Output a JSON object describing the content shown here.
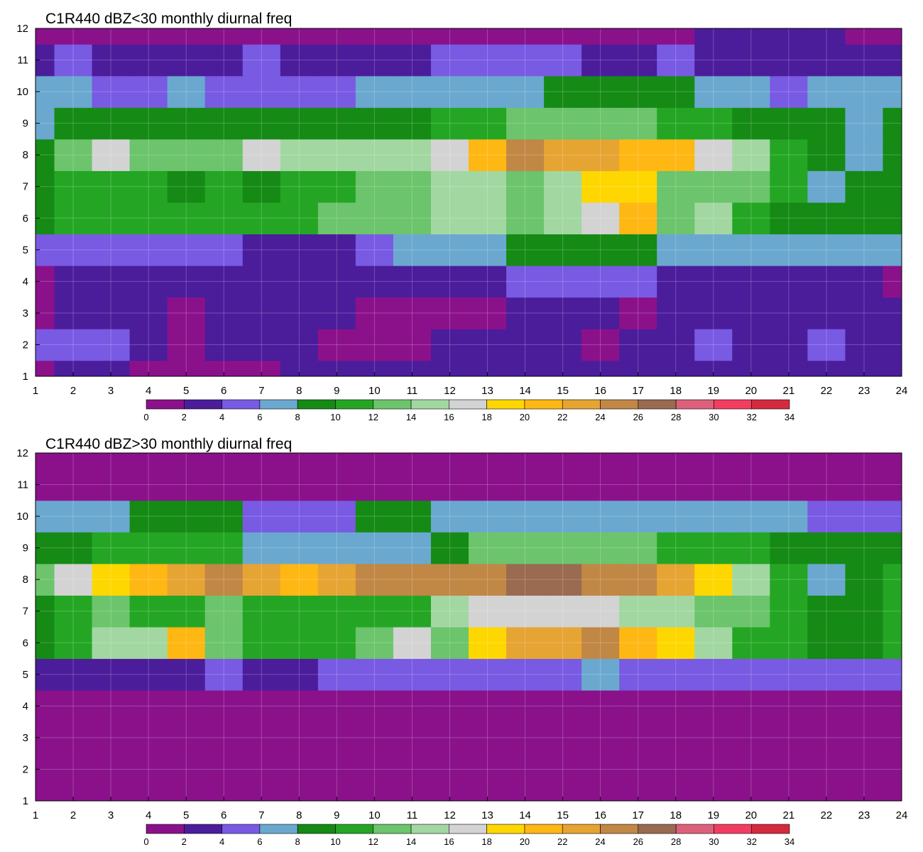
{
  "chart_data": [
    {
      "type": "heatmap",
      "title": "C1R440 dBZ<30 monthly diurnal freq",
      "xlabel": "",
      "ylabel": "",
      "xlim": [
        1,
        24
      ],
      "ylim": [
        1,
        12
      ],
      "x_ticks": [
        "1",
        "2",
        "3",
        "4",
        "5",
        "6",
        "7",
        "8",
        "9",
        "10",
        "11",
        "12",
        "13",
        "14",
        "15",
        "16",
        "17",
        "18",
        "19",
        "20",
        "21",
        "22",
        "23",
        "24"
      ],
      "y_ticks": [
        "1",
        "2",
        "3",
        "4",
        "5",
        "6",
        "7",
        "8",
        "9",
        "10",
        "11",
        "12"
      ],
      "grid": true,
      "colorbar": {
        "levels": [
          "0",
          "2",
          "4",
          "6",
          "8",
          "10",
          "12",
          "14",
          "16",
          "18",
          "20",
          "22",
          "24",
          "26",
          "28",
          "30",
          "32",
          "34"
        ],
        "colors": [
          "#8b118b",
          "#4b1d9b",
          "#785ae3",
          "#6ba8cf",
          "#158a15",
          "#24a624",
          "#6cc46c",
          "#a2d7a2",
          "#d3d3d3",
          "#ffd700",
          "#ffb713",
          "#e6a433",
          "#c18745",
          "#9a6a51",
          "#dd607a",
          "#f23d61",
          "#d52a3d"
        ],
        "position": "bottom"
      },
      "series": [
        {
          "y": 1,
          "values": [
            1,
            2,
            2,
            1,
            1,
            0,
            1,
            2,
            3,
            3,
            3,
            2,
            2,
            2,
            3,
            3,
            3,
            3,
            3,
            3,
            2,
            3,
            3,
            3
          ]
        },
        {
          "y": 2,
          "values": [
            5,
            5,
            4,
            3,
            1,
            2,
            2,
            3,
            1,
            1,
            1,
            2,
            3,
            2,
            3,
            1,
            2,
            3,
            5,
            3,
            2,
            5,
            3,
            3
          ]
        },
        {
          "y": 3,
          "values": [
            1,
            2,
            3,
            3,
            1,
            3,
            3,
            3,
            2,
            1,
            1,
            1,
            1,
            2,
            3,
            3,
            1,
            3,
            3,
            3,
            3,
            2,
            3,
            3
          ]
        },
        {
          "y": 4,
          "values": [
            1,
            2,
            3,
            3,
            3,
            3,
            3,
            3,
            3,
            3,
            3,
            3,
            3,
            4,
            5,
            4,
            4,
            3,
            3,
            2,
            3,
            3,
            3,
            1
          ]
        },
        {
          "y": 5,
          "values": [
            4,
            4,
            4,
            4,
            4,
            4,
            3,
            3,
            2,
            4,
            6,
            6,
            6,
            8,
            8,
            8,
            8,
            7,
            6,
            6,
            6,
            6,
            6,
            6
          ]
        },
        {
          "y": 6,
          "values": [
            9,
            10,
            11,
            10,
            10,
            10,
            10,
            11,
            12,
            13,
            13,
            14,
            15,
            13,
            14,
            16,
            20,
            13,
            14,
            10,
            9,
            8,
            8,
            9
          ]
        },
        {
          "y": 7,
          "values": [
            9,
            10,
            11,
            10,
            9,
            10,
            9,
            10,
            11,
            13,
            13,
            14,
            15,
            13,
            15,
            18,
            19,
            13,
            12,
            12,
            10,
            6,
            9,
            9
          ]
        },
        {
          "y": 8,
          "values": [
            9,
            12,
            16,
            13,
            13,
            13,
            16,
            14,
            14,
            14,
            14,
            16,
            21,
            24,
            22,
            22,
            21,
            20,
            17,
            15,
            11,
            9,
            7,
            9
          ]
        },
        {
          "y": 9,
          "values": [
            6,
            8,
            9,
            9,
            9,
            9,
            9,
            9,
            9,
            9,
            9,
            10,
            11,
            12,
            12,
            12,
            12,
            11,
            10,
            9,
            9,
            8,
            7,
            8
          ]
        },
        {
          "y": 10,
          "values": [
            7,
            6,
            5,
            4,
            6,
            5,
            5,
            5,
            5,
            6,
            6,
            6,
            7,
            7,
            8,
            8,
            8,
            8,
            7,
            6,
            5,
            6,
            6,
            6
          ]
        },
        {
          "y": 11,
          "values": [
            3,
            4,
            3,
            3,
            3,
            3,
            4,
            3,
            3,
            3,
            3,
            4,
            4,
            4,
            4,
            3,
            3,
            4,
            3,
            3,
            3,
            2,
            3,
            3
          ]
        },
        {
          "y": 12,
          "values": [
            1,
            1,
            1,
            1,
            1,
            1,
            1,
            1,
            1,
            1,
            1,
            1,
            1,
            1,
            1,
            1,
            1,
            1,
            2,
            3,
            3,
            2,
            1,
            1
          ]
        }
      ]
    },
    {
      "type": "heatmap",
      "title": "C1R440 dBZ>30 monthly diurnal freq",
      "xlabel": "",
      "ylabel": "",
      "xlim": [
        1,
        24
      ],
      "ylim": [
        1,
        12
      ],
      "x_ticks": [
        "1",
        "2",
        "3",
        "4",
        "5",
        "6",
        "7",
        "8",
        "9",
        "10",
        "11",
        "12",
        "13",
        "14",
        "15",
        "16",
        "17",
        "18",
        "19",
        "20",
        "21",
        "22",
        "23",
        "24"
      ],
      "y_ticks": [
        "1",
        "2",
        "3",
        "4",
        "5",
        "6",
        "7",
        "8",
        "9",
        "10",
        "11",
        "12"
      ],
      "grid": true,
      "colorbar": {
        "levels": [
          "0",
          "2",
          "4",
          "6",
          "8",
          "10",
          "12",
          "14",
          "16",
          "18",
          "20",
          "22",
          "24",
          "26",
          "28",
          "30",
          "32",
          "34"
        ],
        "colors": [
          "#8b118b",
          "#4b1d9b",
          "#785ae3",
          "#6ba8cf",
          "#158a15",
          "#24a624",
          "#6cc46c",
          "#a2d7a2",
          "#d3d3d3",
          "#ffd700",
          "#ffb713",
          "#e6a433",
          "#c18745",
          "#9a6a51",
          "#dd607a",
          "#f23d61",
          "#d52a3d"
        ],
        "position": "bottom"
      },
      "series": [
        {
          "y": 1,
          "values": [
            0,
            0,
            0,
            0,
            0,
            0,
            0,
            0,
            0,
            0,
            0,
            0,
            0,
            0,
            0,
            0,
            0,
            0,
            0,
            0,
            0,
            0,
            0,
            0
          ]
        },
        {
          "y": 2,
          "values": [
            0,
            0,
            0,
            0,
            0,
            0,
            0,
            0,
            0,
            0,
            0,
            0,
            0,
            0,
            0,
            0,
            0,
            0,
            0,
            0,
            0,
            0,
            0,
            0
          ]
        },
        {
          "y": 3,
          "values": [
            0,
            0,
            0,
            0,
            0,
            0,
            0,
            0,
            0,
            0,
            0,
            0,
            0,
            0,
            0,
            0,
            0,
            0,
            0,
            0,
            0,
            0,
            1,
            1
          ]
        },
        {
          "y": 4,
          "values": [
            1,
            1,
            1,
            1,
            1,
            1,
            1,
            1,
            1,
            1,
            1,
            1,
            1,
            1,
            1,
            1,
            1,
            1,
            1,
            1,
            1,
            1,
            1,
            1
          ]
        },
        {
          "y": 5,
          "values": [
            3,
            3,
            3,
            3,
            3,
            4,
            3,
            3,
            5,
            5,
            4,
            4,
            4,
            5,
            5,
            6,
            4,
            4,
            4,
            4,
            4,
            4,
            4,
            4
          ]
        },
        {
          "y": 6,
          "values": [
            9,
            10,
            14,
            15,
            21,
            13,
            11,
            11,
            10,
            12,
            17,
            13,
            18,
            22,
            22,
            24,
            20,
            19,
            15,
            11,
            10,
            9,
            8,
            11
          ]
        },
        {
          "y": 7,
          "values": [
            9,
            10,
            13,
            10,
            11,
            12,
            10,
            11,
            11,
            11,
            10,
            14,
            17,
            17,
            16,
            17,
            15,
            15,
            13,
            12,
            10,
            9,
            9,
            10
          ]
        },
        {
          "y": 8,
          "values": [
            12,
            16,
            19,
            21,
            22,
            24,
            22,
            21,
            22,
            24,
            24,
            24,
            24,
            27,
            26,
            25,
            24,
            22,
            19,
            14,
            10,
            7,
            9,
            10
          ]
        },
        {
          "y": 9,
          "values": [
            9,
            9,
            10,
            10,
            10,
            10,
            7,
            7,
            6,
            7,
            7,
            8,
            12,
            12,
            12,
            12,
            12,
            11,
            11,
            10,
            9,
            8,
            8,
            8
          ]
        },
        {
          "y": 10,
          "values": [
            7,
            7,
            7,
            8,
            8,
            8,
            5,
            5,
            5,
            8,
            8,
            6,
            6,
            6,
            6,
            6,
            6,
            6,
            6,
            6,
            6,
            5,
            5,
            5
          ]
        },
        {
          "y": 11,
          "values": [
            1,
            1,
            1,
            1,
            1,
            1,
            1,
            1,
            1,
            1,
            1,
            1,
            1,
            1,
            1,
            1,
            1,
            1,
            1,
            1,
            1,
            1,
            1,
            1
          ]
        },
        {
          "y": 12,
          "values": [
            0,
            0,
            0,
            0,
            0,
            0,
            0,
            0,
            0,
            0,
            0,
            0,
            0,
            0,
            0,
            0,
            0,
            0,
            0,
            0,
            0,
            0,
            0,
            0
          ]
        }
      ]
    }
  ]
}
